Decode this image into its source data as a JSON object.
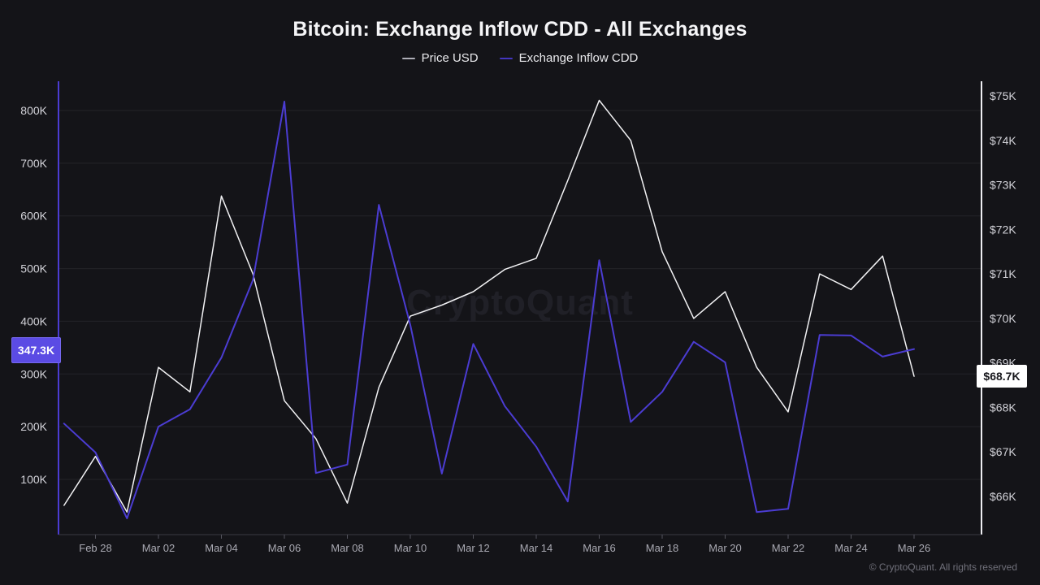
{
  "watermark": "CryptoQuant",
  "footer": {
    "copyright": "© CryptoQuant. All rights reserved"
  },
  "badges": {
    "left": {
      "text": "347.3K",
      "bg": "#5b4be4",
      "fg": "#ffffff"
    },
    "right": {
      "text": "$68.7K",
      "bg": "#ffffff",
      "fg": "#17171c"
    }
  },
  "colors": {
    "background": "#141418",
    "grid": "#232329",
    "x_axis_line": "#3a3a42",
    "left_axis_line": "#4b3cd2",
    "right_axis_line": "#eeeef2",
    "price_line": "#f2f2f4",
    "cdd_line": "#4b3cd2"
  },
  "chart_data": {
    "type": "line",
    "title": "Bitcoin: Exchange Inflow CDD - All Exchanges",
    "legend_position": "top",
    "grid": "horizontal-only",
    "x": [
      "Feb 27",
      "Feb 28",
      "Mar 01",
      "Mar 02",
      "Mar 03",
      "Mar 04",
      "Mar 05",
      "Mar 06",
      "Mar 07",
      "Mar 08",
      "Mar 09",
      "Mar 10",
      "Mar 11",
      "Mar 12",
      "Mar 13",
      "Mar 14",
      "Mar 15",
      "Mar 16",
      "Mar 17",
      "Mar 18",
      "Mar 19",
      "Mar 20",
      "Mar 21",
      "Mar 22",
      "Mar 23",
      "Mar 24",
      "Mar 25",
      "Mar 26"
    ],
    "x_tick_labels": [
      "Feb 28",
      "Mar 02",
      "Mar 04",
      "Mar 06",
      "Mar 08",
      "Mar 10",
      "Mar 12",
      "Mar 14",
      "Mar 16",
      "Mar 18",
      "Mar 20",
      "Mar 22",
      "Mar 24",
      "Mar 26"
    ],
    "series": [
      {
        "name": "Price USD",
        "axis": "right",
        "color": "#f2f2f4",
        "legend_dash_color": "#aeaeb6",
        "values": [
          65800,
          66900,
          65650,
          68900,
          68350,
          72750,
          71000,
          68150,
          67300,
          65850,
          68450,
          70050,
          70300,
          70600,
          71100,
          71350,
          73100,
          74900,
          74000,
          71500,
          70000,
          70600,
          68900,
          67900,
          71000,
          70650,
          71400,
          68700
        ]
      },
      {
        "name": "Exchange Inflow CDD",
        "axis": "left",
        "color": "#4b3cd2",
        "legend_dash_color": "#4336c0",
        "values": [
          206000,
          151000,
          26000,
          200000,
          233000,
          331000,
          478000,
          817000,
          112000,
          128000,
          621000,
          393000,
          111000,
          357000,
          239000,
          162000,
          58000,
          516000,
          209000,
          266000,
          361000,
          322000,
          38000,
          44000,
          374000,
          373000,
          333000,
          347300
        ]
      }
    ],
    "left_axis": {
      "ticks": [
        {
          "label": "100K",
          "value": 100000
        },
        {
          "label": "200K",
          "value": 200000
        },
        {
          "label": "300K",
          "value": 300000
        },
        {
          "label": "400K",
          "value": 400000
        },
        {
          "label": "500K",
          "value": 500000
        },
        {
          "label": "600K",
          "value": 600000
        },
        {
          "label": "700K",
          "value": 700000
        },
        {
          "label": "800K",
          "value": 800000
        }
      ],
      "last_value": "347.3K"
    },
    "right_axis": {
      "ticks": [
        {
          "label": "$66K",
          "value": 66000
        },
        {
          "label": "$67K",
          "value": 67000
        },
        {
          "label": "$68K",
          "value": 68000
        },
        {
          "label": "$69K",
          "value": 69000
        },
        {
          "label": "$70K",
          "value": 70000
        },
        {
          "label": "$71K",
          "value": 71000
        },
        {
          "label": "$72K",
          "value": 72000
        },
        {
          "label": "$73K",
          "value": 73000
        },
        {
          "label": "$74K",
          "value": 74000
        },
        {
          "label": "$75K",
          "value": 75000
        }
      ],
      "last_value": "$68.7K"
    }
  }
}
